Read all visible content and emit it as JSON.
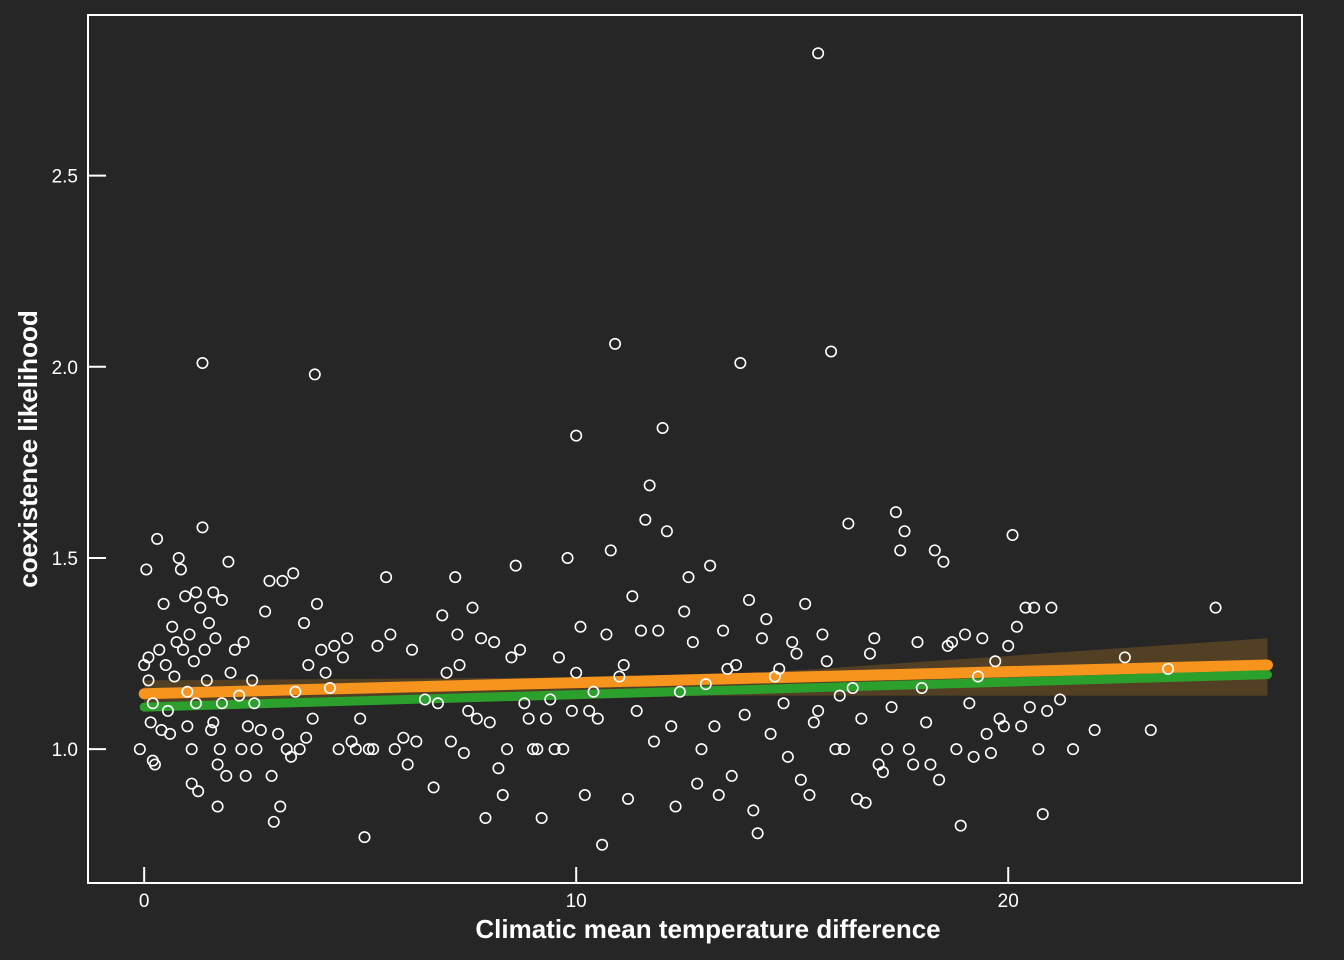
{
  "chart_data": {
    "type": "scatter",
    "title": "",
    "xlabel": "Climatic mean temperature difference",
    "ylabel": "coexistence likelihood",
    "xlim": [
      -1.3,
      26.8
    ],
    "ylim": [
      0.65,
      2.92
    ],
    "x_ticks": [
      0,
      10,
      20
    ],
    "x_tick_labels": [
      "0",
      "10",
      "20"
    ],
    "y_ticks": [
      1.0,
      1.5,
      2.0,
      2.5
    ],
    "y_tick_labels": [
      "1.0",
      "1.5",
      "2.0",
      "2.5"
    ],
    "grid": false,
    "legend": "none",
    "colors": {
      "background": "#262626",
      "axes": "#ffffff",
      "points": "#ffffff",
      "fit_orange": "#f7941d",
      "fit_green": "#2ca02c",
      "confidence_band": "#5c4524"
    },
    "series": [
      {
        "type": "scatter",
        "points": [
          [
            -0.1,
            1.0
          ],
          [
            0.0,
            1.22
          ],
          [
            0.05,
            1.47
          ],
          [
            0.1,
            1.18
          ],
          [
            0.1,
            1.24
          ],
          [
            0.15,
            1.07
          ],
          [
            0.2,
            1.12
          ],
          [
            0.2,
            0.97
          ],
          [
            0.25,
            0.96
          ],
          [
            0.3,
            1.55
          ],
          [
            0.35,
            1.26
          ],
          [
            0.4,
            1.05
          ],
          [
            0.45,
            1.38
          ],
          [
            0.5,
            1.22
          ],
          [
            0.55,
            1.1
          ],
          [
            0.6,
            1.04
          ],
          [
            0.65,
            1.32
          ],
          [
            0.7,
            1.19
          ],
          [
            0.75,
            1.28
          ],
          [
            0.8,
            1.5
          ],
          [
            0.85,
            1.47
          ],
          [
            0.9,
            1.26
          ],
          [
            0.95,
            1.4
          ],
          [
            1.0,
            1.06
          ],
          [
            1.0,
            1.15
          ],
          [
            1.05,
            1.3
          ],
          [
            1.1,
            1.0
          ],
          [
            1.1,
            0.91
          ],
          [
            1.15,
            1.23
          ],
          [
            1.2,
            1.41
          ],
          [
            1.2,
            1.12
          ],
          [
            1.25,
            0.89
          ],
          [
            1.3,
            1.37
          ],
          [
            1.35,
            1.58
          ],
          [
            1.35,
            2.01
          ],
          [
            1.4,
            1.26
          ],
          [
            1.45,
            1.18
          ],
          [
            1.5,
            1.33
          ],
          [
            1.55,
            1.05
          ],
          [
            1.6,
            1.41
          ],
          [
            1.6,
            1.07
          ],
          [
            1.65,
            1.29
          ],
          [
            1.7,
            0.85
          ],
          [
            1.7,
            0.96
          ],
          [
            1.75,
            1.0
          ],
          [
            1.8,
            1.12
          ],
          [
            1.8,
            1.39
          ],
          [
            1.9,
            0.93
          ],
          [
            1.95,
            1.49
          ],
          [
            2.0,
            1.2
          ],
          [
            2.1,
            1.26
          ],
          [
            2.2,
            1.14
          ],
          [
            2.25,
            1.0
          ],
          [
            2.3,
            1.28
          ],
          [
            2.35,
            0.93
          ],
          [
            2.4,
            1.06
          ],
          [
            2.5,
            1.18
          ],
          [
            2.55,
            1.12
          ],
          [
            2.6,
            1.0
          ],
          [
            2.7,
            1.05
          ],
          [
            2.8,
            1.36
          ],
          [
            2.9,
            1.44
          ],
          [
            2.95,
            0.93
          ],
          [
            3.0,
            0.81
          ],
          [
            3.1,
            1.04
          ],
          [
            3.15,
            0.85
          ],
          [
            3.2,
            1.44
          ],
          [
            3.3,
            1.0
          ],
          [
            3.4,
            0.98
          ],
          [
            3.45,
            1.46
          ],
          [
            3.5,
            1.15
          ],
          [
            3.6,
            1.0
          ],
          [
            3.7,
            1.33
          ],
          [
            3.75,
            1.03
          ],
          [
            3.8,
            1.22
          ],
          [
            3.9,
            1.08
          ],
          [
            3.95,
            1.98
          ],
          [
            4.0,
            1.38
          ],
          [
            4.1,
            1.26
          ],
          [
            4.2,
            1.2
          ],
          [
            4.3,
            1.16
          ],
          [
            4.4,
            1.27
          ],
          [
            4.5,
            1.0
          ],
          [
            4.6,
            1.24
          ],
          [
            4.7,
            1.29
          ],
          [
            4.8,
            1.02
          ],
          [
            4.9,
            1.0
          ],
          [
            5.0,
            1.08
          ],
          [
            5.1,
            0.77
          ],
          [
            5.2,
            1.0
          ],
          [
            5.3,
            1.0
          ],
          [
            5.4,
            1.27
          ],
          [
            5.6,
            1.45
          ],
          [
            5.7,
            1.3
          ],
          [
            5.8,
            1.0
          ],
          [
            6.0,
            1.03
          ],
          [
            6.1,
            0.96
          ],
          [
            6.2,
            1.26
          ],
          [
            6.3,
            1.02
          ],
          [
            6.5,
            1.13
          ],
          [
            6.7,
            0.9
          ],
          [
            6.8,
            1.12
          ],
          [
            6.9,
            1.35
          ],
          [
            7.0,
            1.2
          ],
          [
            7.1,
            1.02
          ],
          [
            7.2,
            1.45
          ],
          [
            7.25,
            1.3
          ],
          [
            7.3,
            1.22
          ],
          [
            7.4,
            0.99
          ],
          [
            7.5,
            1.1
          ],
          [
            7.6,
            1.37
          ],
          [
            7.7,
            1.08
          ],
          [
            7.8,
            1.29
          ],
          [
            7.9,
            0.82
          ],
          [
            8.0,
            1.07
          ],
          [
            8.1,
            1.28
          ],
          [
            8.2,
            0.95
          ],
          [
            8.3,
            0.88
          ],
          [
            8.4,
            1.0
          ],
          [
            8.5,
            1.24
          ],
          [
            8.6,
            1.48
          ],
          [
            8.7,
            1.26
          ],
          [
            8.8,
            1.12
          ],
          [
            8.9,
            1.08
          ],
          [
            9.0,
            1.0
          ],
          [
            9.1,
            1.0
          ],
          [
            9.2,
            0.82
          ],
          [
            9.3,
            1.08
          ],
          [
            9.4,
            1.13
          ],
          [
            9.5,
            1.0
          ],
          [
            9.6,
            1.24
          ],
          [
            9.7,
            1.0
          ],
          [
            9.8,
            1.5
          ],
          [
            9.9,
            1.1
          ],
          [
            10.0,
            1.2
          ],
          [
            10.0,
            1.82
          ],
          [
            10.1,
            1.32
          ],
          [
            10.2,
            0.88
          ],
          [
            10.3,
            1.1
          ],
          [
            10.4,
            1.15
          ],
          [
            10.5,
            1.08
          ],
          [
            10.6,
            0.75
          ],
          [
            10.7,
            1.3
          ],
          [
            10.8,
            1.52
          ],
          [
            10.9,
            2.06
          ],
          [
            11.0,
            1.19
          ],
          [
            11.1,
            1.22
          ],
          [
            11.2,
            0.87
          ],
          [
            11.3,
            1.4
          ],
          [
            11.4,
            1.1
          ],
          [
            11.5,
            1.31
          ],
          [
            11.6,
            1.6
          ],
          [
            11.7,
            1.69
          ],
          [
            11.8,
            1.02
          ],
          [
            11.9,
            1.31
          ],
          [
            12.0,
            1.84
          ],
          [
            12.1,
            1.57
          ],
          [
            12.2,
            1.06
          ],
          [
            12.3,
            0.85
          ],
          [
            12.4,
            1.15
          ],
          [
            12.5,
            1.36
          ],
          [
            12.6,
            1.45
          ],
          [
            12.7,
            1.28
          ],
          [
            12.8,
            0.91
          ],
          [
            12.9,
            1.0
          ],
          [
            13.0,
            1.17
          ],
          [
            13.1,
            1.48
          ],
          [
            13.2,
            1.06
          ],
          [
            13.3,
            0.88
          ],
          [
            13.4,
            1.31
          ],
          [
            13.5,
            1.21
          ],
          [
            13.6,
            0.93
          ],
          [
            13.7,
            1.22
          ],
          [
            13.8,
            2.01
          ],
          [
            13.9,
            1.09
          ],
          [
            14.0,
            1.39
          ],
          [
            14.1,
            0.84
          ],
          [
            14.2,
            0.78
          ],
          [
            14.3,
            1.29
          ],
          [
            14.4,
            1.34
          ],
          [
            14.5,
            1.04
          ],
          [
            14.6,
            1.19
          ],
          [
            14.7,
            1.21
          ],
          [
            14.8,
            1.12
          ],
          [
            14.9,
            0.98
          ],
          [
            15.0,
            1.28
          ],
          [
            15.1,
            1.25
          ],
          [
            15.2,
            0.92
          ],
          [
            15.3,
            1.38
          ],
          [
            15.4,
            0.88
          ],
          [
            15.5,
            1.07
          ],
          [
            15.6,
            1.1
          ],
          [
            15.7,
            1.3
          ],
          [
            15.8,
            1.23
          ],
          [
            15.9,
            2.04
          ],
          [
            16.0,
            1.0
          ],
          [
            16.1,
            1.14
          ],
          [
            16.2,
            1.0
          ],
          [
            16.3,
            1.59
          ],
          [
            16.4,
            1.16
          ],
          [
            16.5,
            0.87
          ],
          [
            16.6,
            1.08
          ],
          [
            16.7,
            0.86
          ],
          [
            16.8,
            1.25
          ],
          [
            16.9,
            1.29
          ],
          [
            17.0,
            0.96
          ],
          [
            17.1,
            0.94
          ],
          [
            17.2,
            1.0
          ],
          [
            17.3,
            1.11
          ],
          [
            17.4,
            1.62
          ],
          [
            17.5,
            1.52
          ],
          [
            17.6,
            1.57
          ],
          [
            17.7,
            1.0
          ],
          [
            17.8,
            0.96
          ],
          [
            17.9,
            1.28
          ],
          [
            18.0,
            1.16
          ],
          [
            18.1,
            1.07
          ],
          [
            18.2,
            0.96
          ],
          [
            18.3,
            1.52
          ],
          [
            18.4,
            0.92
          ],
          [
            18.5,
            1.49
          ],
          [
            18.6,
            1.27
          ],
          [
            18.7,
            1.28
          ],
          [
            18.8,
            1.0
          ],
          [
            18.9,
            0.8
          ],
          [
            19.0,
            1.3
          ],
          [
            19.1,
            1.12
          ],
          [
            19.2,
            0.98
          ],
          [
            19.3,
            1.19
          ],
          [
            19.4,
            1.29
          ],
          [
            19.5,
            1.04
          ],
          [
            19.6,
            0.99
          ],
          [
            19.7,
            1.23
          ],
          [
            19.8,
            1.08
          ],
          [
            19.9,
            1.06
          ],
          [
            20.0,
            1.27
          ],
          [
            20.1,
            1.56
          ],
          [
            20.2,
            1.32
          ],
          [
            20.3,
            1.06
          ],
          [
            20.4,
            1.37
          ],
          [
            20.5,
            1.11
          ],
          [
            20.6,
            1.37
          ],
          [
            20.7,
            1.0
          ],
          [
            20.8,
            0.83
          ],
          [
            20.9,
            1.1
          ],
          [
            21.0,
            1.37
          ],
          [
            21.2,
            1.13
          ],
          [
            21.5,
            1.0
          ],
          [
            22.0,
            1.05
          ],
          [
            22.7,
            1.24
          ],
          [
            23.3,
            1.05
          ],
          [
            23.7,
            1.21
          ],
          [
            24.8,
            1.37
          ],
          [
            15.6,
            2.82
          ]
        ]
      },
      {
        "type": "line",
        "name": "",
        "color": "#f7941d",
        "x": [
          0.0,
          26.0
        ],
        "y": [
          1.145,
          1.22
        ]
      },
      {
        "type": "line",
        "name": "",
        "color": "#2ca02c",
        "x": [
          0.0,
          26.0
        ],
        "y": [
          1.11,
          1.195
        ]
      },
      {
        "type": "band",
        "name": "",
        "color": "#5c4524",
        "x": [
          0.0,
          13.0,
          26.0
        ],
        "lower": [
          1.1,
          1.14,
          1.14
        ],
        "upper": [
          1.18,
          1.19,
          1.29
        ]
      }
    ]
  }
}
